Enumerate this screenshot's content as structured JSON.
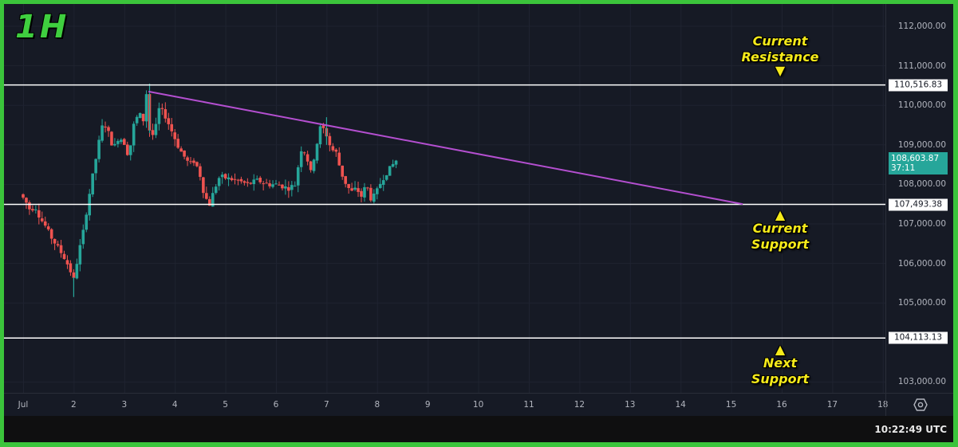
{
  "timeframe_label": "1H",
  "colors": {
    "background": "#161a25",
    "frame": "#3bc43b",
    "up": "#26a69a",
    "down": "#ef5350",
    "trendline": "#b44fd0",
    "level_line": "#ffffff",
    "annotation": "#f5ea1a"
  },
  "price_axis": {
    "ticks": [
      "112,000.00",
      "111,000.00",
      "110,000.00",
      "109,000.00",
      "108,000.00",
      "107,000.00",
      "106,000.00",
      "105,000.00",
      "103,000.00"
    ],
    "tick_values": [
      112000,
      111000,
      110000,
      109000,
      108000,
      107000,
      106000,
      105000,
      103000
    ],
    "current_price": "108,603.87",
    "countdown": "37:11"
  },
  "time_axis": {
    "ticks": [
      "Jul",
      "2",
      "3",
      "4",
      "5",
      "6",
      "7",
      "8",
      "9",
      "10",
      "11",
      "12",
      "13",
      "14",
      "15",
      "16",
      "17",
      "18"
    ]
  },
  "levels": [
    {
      "name": "current-resistance",
      "value": 110516.83,
      "label": "110,516.83"
    },
    {
      "name": "current-support",
      "value": 107493.38,
      "label": "107,493.38"
    },
    {
      "name": "next-support",
      "value": 104113.13,
      "label": "104,113.13"
    }
  ],
  "annotations": {
    "resistance": {
      "line1": "Current",
      "line2": "Resistance",
      "arrow": "🡇"
    },
    "support": {
      "line1": "Current",
      "line2": "Support",
      "arrow": "🡅"
    },
    "next_support": {
      "line1": "Next",
      "line2": "Support",
      "arrow": "🡅"
    }
  },
  "footer": {
    "clock": "10:22:49 UTC"
  },
  "chart_data": {
    "type": "candlestick",
    "title": "1H",
    "xlabel": "",
    "ylabel": "",
    "ylim": [
      102600,
      112600
    ],
    "x_ticks": [
      "Jul",
      "2",
      "3",
      "4",
      "5",
      "6",
      "7",
      "8",
      "9",
      "10",
      "11",
      "12",
      "13",
      "14",
      "15",
      "16",
      "17",
      "18"
    ],
    "close_path": [
      [
        1.0,
        107750
      ],
      [
        1.1,
        107600
      ],
      [
        1.2,
        107350
      ],
      [
        1.3,
        107450
      ],
      [
        1.4,
        107150
      ],
      [
        1.5,
        106950
      ],
      [
        1.6,
        106700
      ],
      [
        1.7,
        106500
      ],
      [
        1.8,
        106300
      ],
      [
        1.9,
        106100
      ],
      [
        2.0,
        105800
      ],
      [
        2.05,
        105500
      ],
      [
        2.15,
        106200
      ],
      [
        2.25,
        106800
      ],
      [
        2.35,
        107600
      ],
      [
        2.45,
        108300
      ],
      [
        2.55,
        109000
      ],
      [
        2.65,
        109600
      ],
      [
        2.75,
        109300
      ],
      [
        2.85,
        108900
      ],
      [
        2.95,
        109200
      ],
      [
        3.05,
        109100
      ],
      [
        3.15,
        108700
      ],
      [
        3.25,
        109500
      ],
      [
        3.35,
        109800
      ],
      [
        3.45,
        109600
      ],
      [
        3.5,
        110300
      ],
      [
        3.55,
        109400
      ],
      [
        3.65,
        109200
      ],
      [
        3.75,
        109900
      ],
      [
        3.85,
        109800
      ],
      [
        3.95,
        109500
      ],
      [
        4.05,
        109200
      ],
      [
        4.15,
        108900
      ],
      [
        4.25,
        108700
      ],
      [
        4.35,
        108500
      ],
      [
        4.45,
        108600
      ],
      [
        4.55,
        108300
      ],
      [
        4.65,
        107700
      ],
      [
        4.75,
        107500
      ],
      [
        4.85,
        107900
      ],
      [
        4.95,
        108200
      ],
      [
        5.1,
        108150
      ],
      [
        5.3,
        108100
      ],
      [
        5.5,
        108000
      ],
      [
        5.7,
        108100
      ],
      [
        5.9,
        108000
      ],
      [
        6.1,
        108000
      ],
      [
        6.3,
        107900
      ],
      [
        6.45,
        108000
      ],
      [
        6.55,
        108900
      ],
      [
        6.65,
        108800
      ],
      [
        6.75,
        108300
      ],
      [
        6.85,
        108900
      ],
      [
        6.95,
        109500
      ],
      [
        7.05,
        109300
      ],
      [
        7.15,
        108900
      ],
      [
        7.25,
        108800
      ],
      [
        7.35,
        108300
      ],
      [
        7.45,
        108000
      ],
      [
        7.55,
        107800
      ],
      [
        7.65,
        107900
      ],
      [
        7.75,
        107700
      ],
      [
        7.85,
        108000
      ],
      [
        7.95,
        107600
      ],
      [
        8.05,
        107800
      ],
      [
        8.15,
        108100
      ],
      [
        8.25,
        108300
      ],
      [
        8.35,
        108450
      ],
      [
        8.42,
        108604
      ]
    ],
    "horizontal_levels": [
      110516.83,
      107493.38,
      104113.13
    ],
    "trendline": {
      "from": {
        "day": 3.48,
        "price": 110350
      },
      "to": {
        "day": 15.23,
        "price": 107500
      }
    },
    "last_price": 108603.87
  }
}
